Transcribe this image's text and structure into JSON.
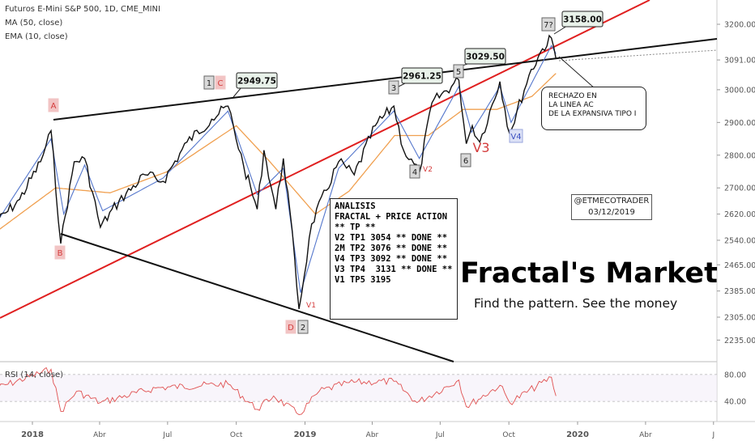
{
  "legend": {
    "symbol": "Futuros E-Mini S&P 500, 1D, CME_MINI",
    "ma": "MA (50, close)",
    "ema": "EMA (10, close)",
    "rsi": "RSI (14, close)"
  },
  "analysis": {
    "lines": [
      "ANALISIS",
      "FRACTAL + PRICE ACTION",
      "",
      "** TP **",
      "",
      "V2 TP1 3054 ** DONE **",
      "2M TP2 3076 ** DONE **",
      "V4 TP3 3092 ** DONE **",
      "V3 TP4  3131 ** DONE **",
      "V1 TP5 3195"
    ]
  },
  "author": {
    "handle": "@ETMECOTRADER",
    "date": "03/12/2019"
  },
  "note": {
    "lines": [
      "RECHAZO EN",
      "LA LINEA AC",
      "DE LA EXPANSIVA TIPO I"
    ]
  },
  "brand": {
    "title": "Fractal's Market",
    "subtitle": "Find the pattern. See the money"
  },
  "colors": {
    "price": "#111111",
    "ma": "#f0a050",
    "ema": "#5577cc",
    "redline": "#e02020",
    "rsi": "#e05050",
    "wave_red": "#d43c3c",
    "wave_blue": "#3a4fc0"
  },
  "chart_data": {
    "type": "line",
    "title": "Futuros E-Mini S&P 500, 1D, CME_MINI",
    "x_ticks": [
      "2018",
      "Abr",
      "Jul",
      "Oct",
      "2019",
      "Abr",
      "Jul",
      "Oct",
      "2020",
      "Abr",
      "J"
    ],
    "y_ticks": [
      3200.0,
      3091.0,
      3000.0,
      2900.0,
      2800.0,
      2700.0,
      2620.0,
      2540.0,
      2465.0,
      2385.0,
      2305.0,
      2235.0
    ],
    "y_range": [
      2180,
      3270
    ],
    "price_series": {
      "name": "Futuros E-Mini S&P 500",
      "x": [
        "2017-11-10",
        "2017-12-15",
        "2018-01-12",
        "2018-01-26",
        "2018-02-08",
        "2018-02-26",
        "2018-03-12",
        "2018-04-02",
        "2018-04-27",
        "2018-06-01",
        "2018-06-25",
        "2018-07-27",
        "2018-08-29",
        "2018-09-20",
        "2018-10-11",
        "2018-10-29",
        "2018-11-07",
        "2018-11-23",
        "2018-12-03",
        "2018-12-12",
        "2018-12-24",
        "2019-01-10",
        "2019-02-15",
        "2019-03-08",
        "2019-04-05",
        "2019-04-30",
        "2019-05-13",
        "2019-06-03",
        "2019-06-20",
        "2019-07-26",
        "2019-08-05",
        "2019-08-13",
        "2019-08-23",
        "2019-09-19",
        "2019-10-02",
        "2019-10-28",
        "2019-11-15",
        "2019-11-27",
        "2019-12-03"
      ],
      "values": [
        2585,
        2665,
        2780,
        2875,
        2530,
        2780,
        2790,
        2580,
        2660,
        2740,
        2720,
        2840,
        2910,
        2950,
        2765,
        2635,
        2815,
        2635,
        2790,
        2625,
        2330,
        2590,
        2780,
        2740,
        2890,
        2950,
        2815,
        2745,
        2960,
        3030,
        2835,
        2890,
        2840,
        3025,
        2865,
        3045,
        3125,
        3158,
        3095
      ]
    },
    "ma50": {
      "x": [
        "2017-11-10",
        "2018-02-01",
        "2018-04-15",
        "2018-07-01",
        "2018-10-01",
        "2018-11-15",
        "2019-01-15",
        "2019-03-01",
        "2019-05-01",
        "2019-06-15",
        "2019-08-01",
        "2019-09-15",
        "2019-11-01",
        "2019-12-03"
      ],
      "values": [
        2560,
        2700,
        2685,
        2750,
        2890,
        2780,
        2620,
        2690,
        2860,
        2860,
        2940,
        2940,
        2980,
        3050
      ]
    },
    "ema10": {
      "x": [
        "2017-11-10",
        "2018-01-26",
        "2018-02-12",
        "2018-03-12",
        "2018-04-05",
        "2018-06-25",
        "2018-09-20",
        "2018-10-29",
        "2018-12-03",
        "2018-12-26",
        "2019-02-15",
        "2019-04-30",
        "2019-06-03",
        "2019-07-26",
        "2019-08-12",
        "2019-09-19",
        "2019-10-04",
        "2019-11-27",
        "2019-12-03"
      ],
      "values": [
        2580,
        2850,
        2620,
        2770,
        2630,
        2730,
        2935,
        2680,
        2760,
        2380,
        2760,
        2935,
        2790,
        3010,
        2870,
        3010,
        2900,
        3135,
        3110
      ]
    },
    "levels": [
      {
        "label": "2949.75",
        "value": 2949.75
      },
      {
        "label": "2961.25",
        "value": 2961.25
      },
      {
        "label": "3029.50",
        "value": 3029.5
      },
      {
        "label": "3158.00",
        "value": 3158.0
      }
    ],
    "wave_labels": [
      "A",
      "B",
      "C",
      "1",
      "D",
      "2",
      "V1",
      "3",
      "4",
      "V2",
      "5",
      "6",
      "V3",
      "V4",
      "7?"
    ],
    "rsi": {
      "name": "RSI (14, close)",
      "y_ticks": [
        80.0,
        40.0
      ],
      "x": [
        "2017-11-10",
        "2018-01-26",
        "2018-02-08",
        "2018-03-01",
        "2018-04-02",
        "2018-06-15",
        "2018-09-20",
        "2018-10-29",
        "2018-11-20",
        "2018-12-24",
        "2019-01-20",
        "2019-03-01",
        "2019-04-30",
        "2019-05-31",
        "2019-07-26",
        "2019-08-05",
        "2019-09-19",
        "2019-10-02",
        "2019-11-27",
        "2019-12-03"
      ],
      "values": [
        58,
        88,
        25,
        55,
        38,
        60,
        66,
        28,
        48,
        20,
        55,
        68,
        70,
        38,
        72,
        32,
        64,
        38,
        76,
        48
      ]
    }
  }
}
